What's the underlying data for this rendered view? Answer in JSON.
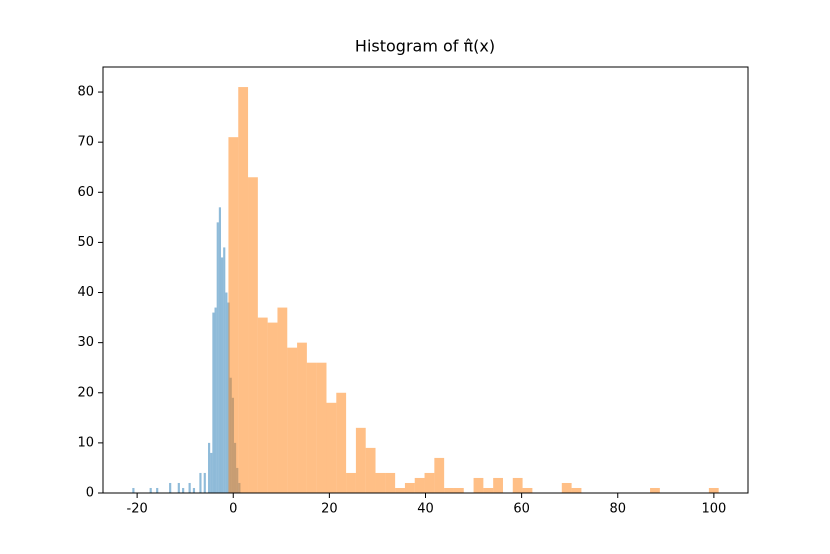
{
  "chart_data": {
    "type": "histogram",
    "title": "Histogram of π̂(x)",
    "series": [
      {
        "color": "#1f77b4",
        "opacity": 0.5,
        "bins": [
          -21,
          -20.55,
          -20.1,
          -19.65,
          -19.2,
          -18.75,
          -18.3,
          -17.85,
          -17.4,
          -16.95,
          -16.5,
          -16.05,
          -15.6,
          -15.15,
          -14.7,
          -14.25,
          -13.8,
          -13.35,
          -12.9,
          -12.45,
          -12,
          -11.55,
          -11.1,
          -10.65,
          -10.2,
          -9.75,
          -9.3,
          -8.85,
          -8.4,
          -7.95,
          -7.5,
          -7.05,
          -6.6,
          -6.15,
          -5.7,
          -5.25,
          -4.8,
          -4.35,
          -3.9,
          -3.45,
          -3,
          -2.55,
          -2.1,
          -1.65,
          -1.2,
          -0.75,
          -0.3,
          0.15,
          0.6,
          1.05,
          1.5
        ],
        "values": [
          1,
          0,
          0,
          0,
          0,
          0,
          0,
          0,
          1,
          0,
          0,
          1,
          0,
          0,
          0,
          0,
          0,
          2,
          0,
          0,
          0,
          2,
          0,
          1,
          0,
          0,
          2,
          0,
          1,
          0,
          0,
          4,
          0,
          4,
          0,
          10,
          8,
          36,
          37,
          54,
          57,
          47,
          49,
          40,
          38,
          23,
          19,
          10,
          5,
          2
        ]
      },
      {
        "color": "#ff7f0e",
        "opacity": 0.5,
        "bins": [
          -1,
          1.04,
          3.08,
          5.12,
          7.16,
          9.2,
          11.24,
          13.28,
          15.32,
          17.36,
          19.4,
          21.44,
          23.48,
          25.52,
          27.56,
          29.6,
          31.64,
          33.68,
          35.72,
          37.76,
          39.8,
          41.84,
          43.88,
          45.92,
          47.96,
          50,
          52.04,
          54.08,
          56.12,
          58.16,
          60.2,
          62.24,
          64.28,
          66.32,
          68.36,
          70.4,
          72.44,
          74.48,
          76.52,
          78.56,
          80.6,
          82.64,
          84.68,
          86.72,
          88.76,
          90.8,
          92.84,
          94.88,
          96.92,
          98.96,
          101
        ],
        "values": [
          71,
          81,
          63,
          35,
          34,
          37,
          29,
          30,
          26,
          26,
          18,
          20,
          4,
          13,
          9,
          4,
          4,
          1,
          2,
          3,
          4,
          7,
          1,
          1,
          0,
          3,
          1,
          3,
          0,
          3,
          1,
          0,
          0,
          0,
          2,
          1,
          0,
          0,
          0,
          0,
          0,
          0,
          0,
          1,
          0,
          0,
          0,
          0,
          0,
          1
        ]
      }
    ],
    "xlim": [
      -27.1,
      107.1
    ],
    "xticks": [
      -20,
      0,
      20,
      40,
      60,
      80,
      100
    ],
    "ylim": [
      0,
      85
    ],
    "yticks": [
      0,
      10,
      20,
      30,
      40,
      50,
      60,
      70,
      80
    ],
    "grid": false
  }
}
